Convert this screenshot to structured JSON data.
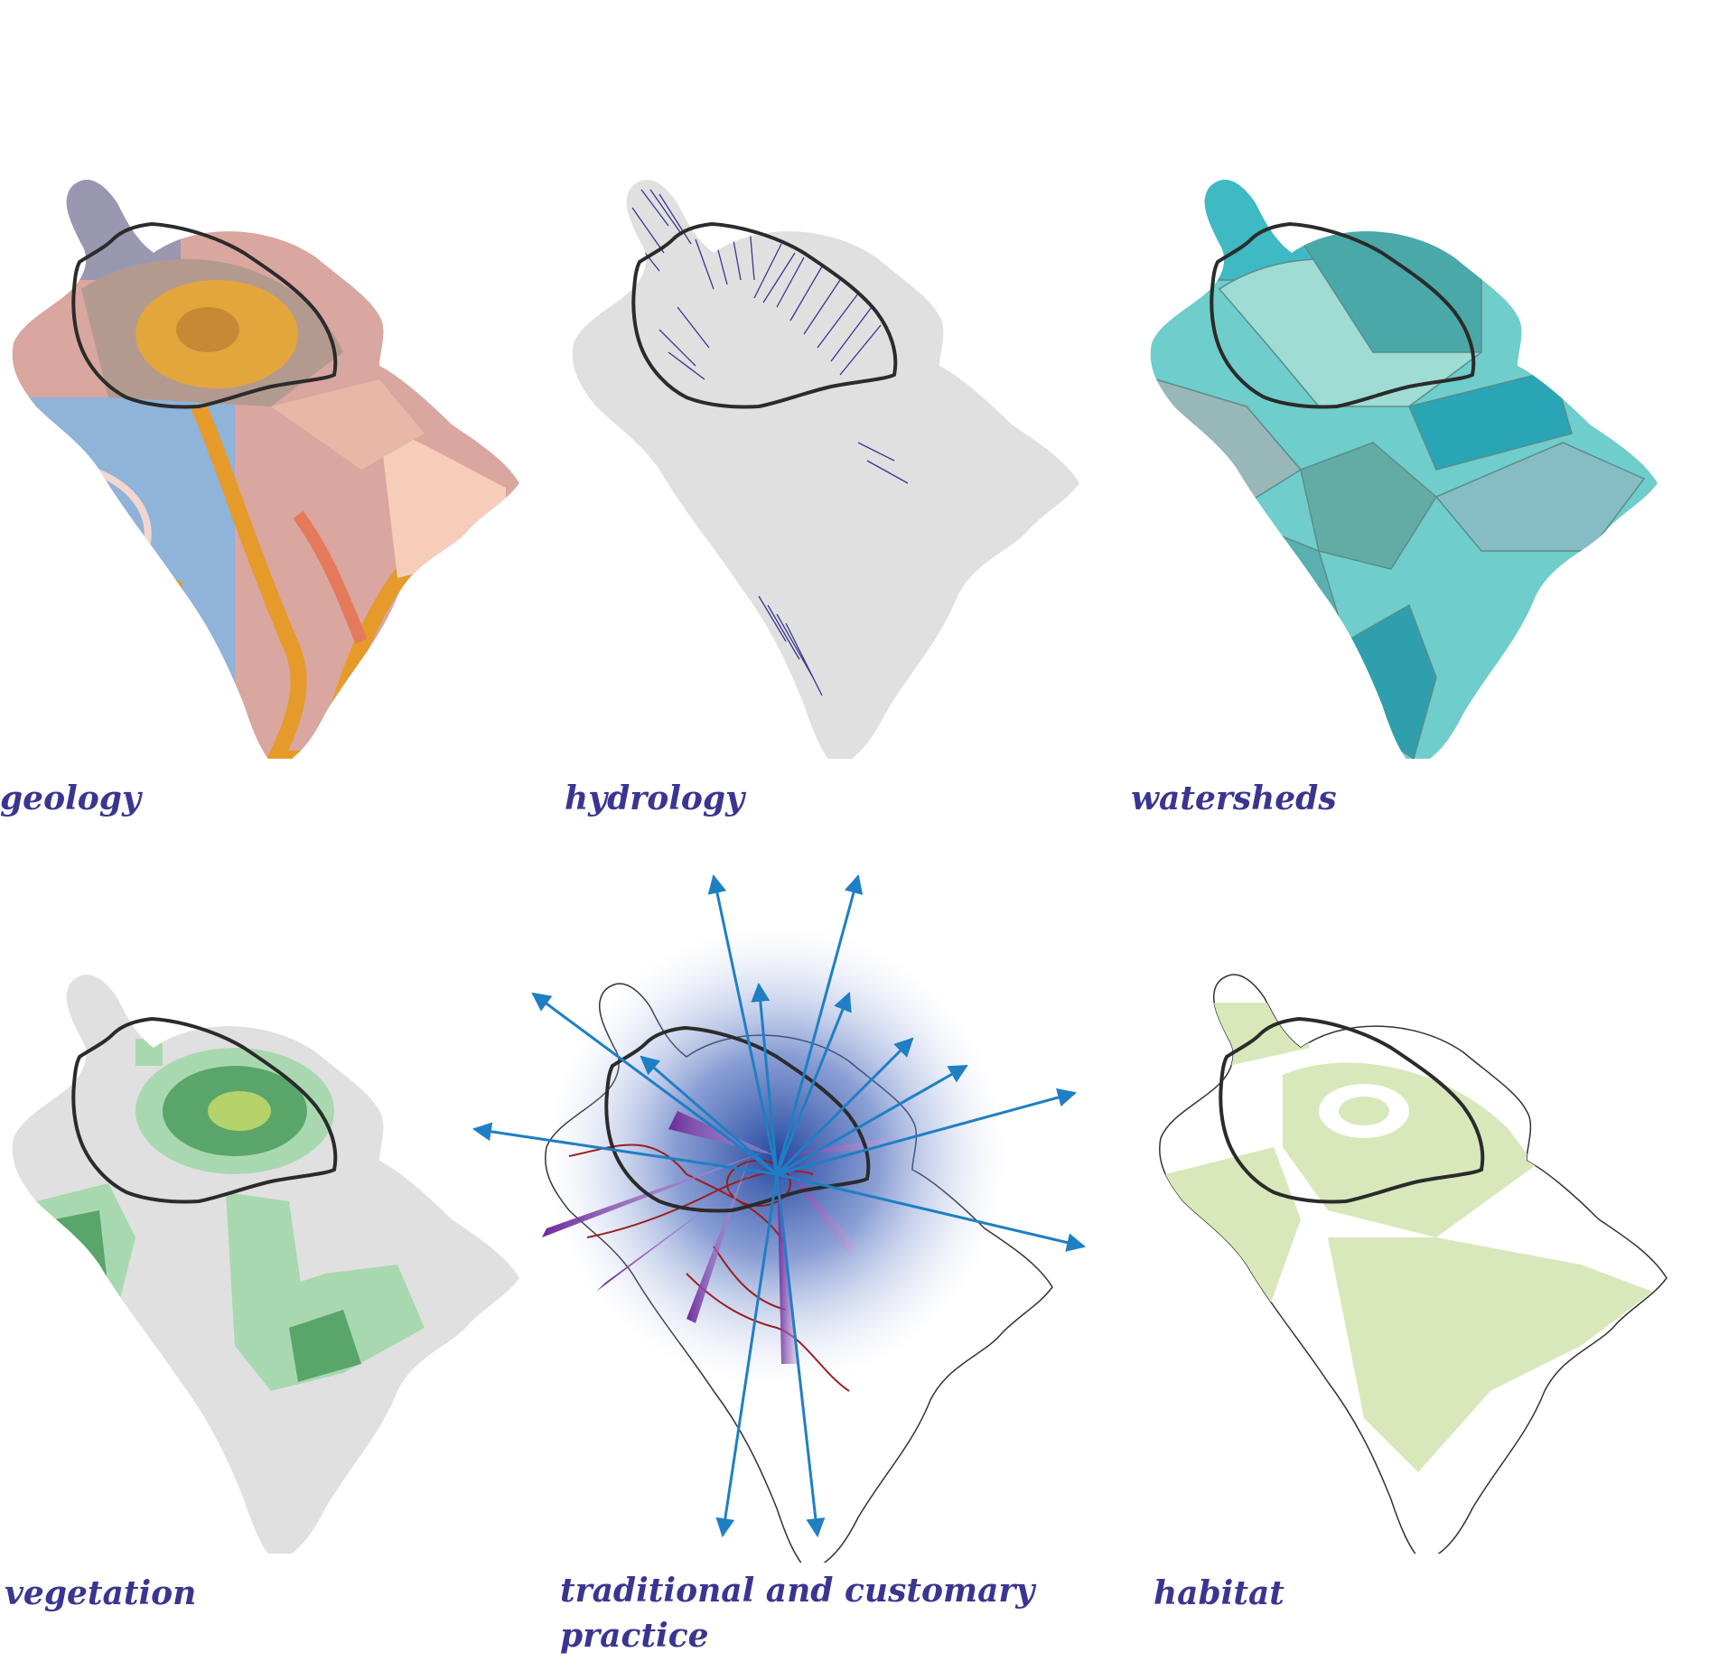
{
  "panels": [
    {
      "id": "geology",
      "label": "geology"
    },
    {
      "id": "hydrology",
      "label": "hydrology"
    },
    {
      "id": "watersheds",
      "label": "watersheds"
    },
    {
      "id": "vegetation",
      "label": "vegetation"
    },
    {
      "id": "traditional",
      "label_line1": "traditional and customary",
      "label_line2": "practice"
    },
    {
      "id": "habitat",
      "label": "habitat"
    }
  ],
  "colors": {
    "label": "#3a3591",
    "island_gray": "#e0e0e0",
    "study_area_outline": "#2b2b2b",
    "hydrology_streams": "#3a3591",
    "veg_light": "#a8d8b0",
    "veg_dark": "#5aa56a",
    "veg_yellow": "#b5d36a",
    "habitat_green": "#d8e8bb",
    "arrows": "#1f7fc4",
    "trails": "#9b1e1e",
    "wedges": "#7d3aa0",
    "glow": "#1b3f9a"
  },
  "icons": {
    "arrow": "arrow-icon"
  }
}
